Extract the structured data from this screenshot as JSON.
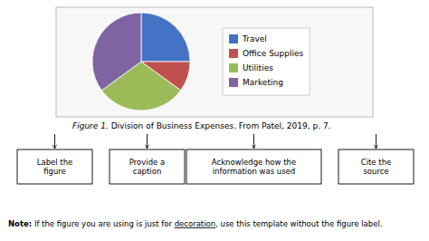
{
  "chart_data": {
    "type": "pie",
    "title": "Figure 1.",
    "subtitle": " Division of Business Expenses. From Patel, 2019, p. 7.",
    "categories": [
      "Travel",
      "Office Supplies",
      "Utilities",
      "Marketing"
    ],
    "values": [
      25,
      10,
      30,
      35
    ],
    "colors": [
      "#4472C4",
      "#C0504D",
      "#9BBB59",
      "#8064A2"
    ],
    "legend": "right",
    "annotations": [
      "Label the\nfigure",
      "Provide a\ncaption",
      "Acknowledge how the\ninformation was used",
      "Cite the\nsource",
      "Note:",
      " If the figure you are using is just for ",
      "decoration",
      ", use this template without the figure label."
    ]
  }
}
